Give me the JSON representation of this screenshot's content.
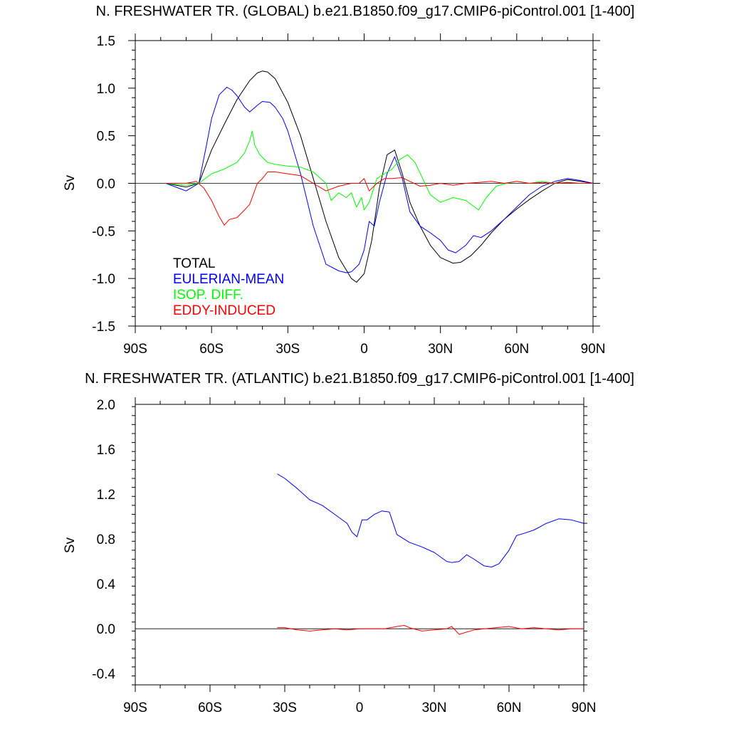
{
  "chart_data": [
    {
      "type": "line",
      "title": "N. FRESHWATER TR. (GLOBAL) b.e21.B1850.f09_g17.CMIP6-piControl.001 [1-400]",
      "xlabel": "",
      "ylabel": "Sv",
      "xlim": [
        -90,
        90
      ],
      "ylim": [
        -1.5,
        1.5
      ],
      "x_tick_values": [
        -90,
        -60,
        -30,
        0,
        30,
        60,
        90
      ],
      "x_tick_labels": [
        "90S",
        "60S",
        "30S",
        "0",
        "30N",
        "60N",
        "90N"
      ],
      "y_tick_values": [
        -1.5,
        -1.0,
        -0.5,
        0.0,
        0.5,
        1.0,
        1.5
      ],
      "y_tick_labels": [
        "-1.5",
        "-1.0",
        "-0.5",
        "0.0",
        "0.5",
        "1.0",
        "1.5"
      ],
      "legend_position": "lower-left",
      "zero_line": true,
      "series": [
        {
          "name": "TOTAL",
          "color": "#000000",
          "x": [
            -78,
            -70,
            -65,
            -60,
            -55,
            -50,
            -45,
            -42,
            -40,
            -38,
            -35,
            -30,
            -25,
            -20,
            -15,
            -10,
            -5,
            -3,
            0,
            3,
            6,
            9,
            12,
            15,
            18,
            22,
            26,
            30,
            35,
            38,
            42,
            46,
            50,
            55,
            60,
            65,
            70,
            75,
            80,
            85,
            90
          ],
          "y": [
            0.0,
            -0.04,
            0.0,
            0.35,
            0.62,
            0.88,
            1.08,
            1.16,
            1.18,
            1.17,
            1.1,
            0.85,
            0.5,
            0.05,
            -0.4,
            -0.78,
            -1.0,
            -1.04,
            -0.95,
            -0.6,
            -0.05,
            0.3,
            0.35,
            0.1,
            -0.2,
            -0.45,
            -0.65,
            -0.78,
            -0.84,
            -0.83,
            -0.76,
            -0.65,
            -0.52,
            -0.38,
            -0.27,
            -0.17,
            -0.08,
            0.0,
            0.04,
            0.02,
            0.0
          ]
        },
        {
          "name": "EULERIAN-MEAN",
          "color": "#0000ff",
          "x": [
            -78,
            -70,
            -65,
            -62,
            -60,
            -57,
            -54,
            -52,
            -50,
            -47,
            -45,
            -42,
            -40,
            -37,
            -35,
            -32,
            -30,
            -25,
            -20,
            -15,
            -10,
            -7,
            -5,
            -2,
            0,
            2,
            4,
            6,
            9,
            12,
            15,
            18,
            22,
            26,
            30,
            33,
            36,
            40,
            43,
            46,
            50,
            55,
            60,
            65,
            70,
            75,
            80,
            85,
            90
          ],
          "y": [
            0.0,
            -0.08,
            0.0,
            0.4,
            0.68,
            0.93,
            1.01,
            0.98,
            0.92,
            0.8,
            0.75,
            0.82,
            0.86,
            0.85,
            0.8,
            0.68,
            0.55,
            0.1,
            -0.45,
            -0.85,
            -0.92,
            -0.94,
            -0.93,
            -0.85,
            -0.7,
            -0.4,
            -0.45,
            -0.2,
            0.1,
            0.28,
            0.05,
            -0.3,
            -0.45,
            -0.52,
            -0.6,
            -0.7,
            -0.73,
            -0.65,
            -0.55,
            -0.57,
            -0.5,
            -0.38,
            -0.25,
            -0.12,
            -0.03,
            0.02,
            0.05,
            0.03,
            0.0
          ]
        },
        {
          "name": "ISOP. DIFF.",
          "color": "#00ff00",
          "x": [
            -78,
            -70,
            -65,
            -60,
            -55,
            -50,
            -47,
            -45,
            -44,
            -43,
            -41,
            -38,
            -35,
            -30,
            -25,
            -20,
            -15,
            -13,
            -10,
            -7,
            -5,
            -3,
            -1,
            0,
            2,
            5,
            8,
            11,
            14,
            17,
            20,
            23,
            26,
            30,
            35,
            40,
            45,
            48,
            52,
            56,
            60,
            65,
            70,
            75,
            80,
            85,
            90
          ],
          "y": [
            0.0,
            -0.02,
            0.0,
            0.1,
            0.15,
            0.22,
            0.32,
            0.45,
            0.55,
            0.4,
            0.3,
            0.22,
            0.2,
            0.18,
            0.17,
            0.12,
            0.0,
            -0.18,
            -0.1,
            -0.15,
            -0.1,
            -0.25,
            -0.15,
            -0.28,
            -0.2,
            0.05,
            0.1,
            0.15,
            0.25,
            0.3,
            0.22,
            0.05,
            -0.12,
            -0.2,
            -0.15,
            -0.18,
            -0.28,
            -0.15,
            -0.03,
            0.0,
            0.02,
            0.0,
            0.02,
            0.0,
            0.01,
            0.0,
            0.0
          ]
        },
        {
          "name": "EDDY-INDUCED",
          "color": "#ff0000",
          "x": [
            -78,
            -70,
            -66,
            -63,
            -60,
            -57,
            -55,
            -53,
            -50,
            -47,
            -45,
            -42,
            -40,
            -38,
            -35,
            -30,
            -25,
            -20,
            -15,
            -10,
            -5,
            -2,
            0,
            2,
            5,
            8,
            11,
            15,
            18,
            22,
            26,
            30,
            35,
            40,
            45,
            50,
            55,
            60,
            65,
            70,
            75,
            80,
            85,
            90
          ],
          "y": [
            0.0,
            0.0,
            0.02,
            -0.05,
            -0.18,
            -0.35,
            -0.44,
            -0.38,
            -0.36,
            -0.28,
            -0.22,
            0.0,
            0.05,
            0.12,
            0.12,
            0.1,
            0.08,
            0.0,
            -0.08,
            -0.03,
            0.0,
            0.0,
            0.05,
            -0.08,
            0.0,
            0.05,
            0.05,
            0.06,
            0.02,
            -0.03,
            -0.02,
            0.0,
            -0.02,
            0.0,
            0.01,
            0.02,
            0.0,
            0.02,
            0.0,
            0.01,
            0.0,
            0.01,
            0.0,
            0.0
          ]
        }
      ]
    },
    {
      "type": "line",
      "title": "N. FRESHWATER TR. (ATLANTIC) b.e21.B1850.f09_g17.CMIP6-piControl.001 [1-400]",
      "xlabel": "",
      "ylabel": "Sv",
      "xlim": [
        -90,
        90
      ],
      "ylim": [
        -0.5,
        2.0
      ],
      "x_tick_values": [
        -90,
        -60,
        -30,
        0,
        30,
        60,
        90
      ],
      "x_tick_labels": [
        "90S",
        "60S",
        "30S",
        "0",
        "30N",
        "60N",
        "90N"
      ],
      "y_tick_values": [
        -0.4,
        0.0,
        0.4,
        0.8,
        1.2,
        1.6,
        2.0
      ],
      "y_tick_labels": [
        "-0.4",
        "0.0",
        "0.4",
        "0.8",
        "1.2",
        "1.6",
        "2.0"
      ],
      "zero_line": true,
      "series": [
        {
          "color": "#0000ff",
          "x": [
            -33,
            -30,
            -25,
            -20,
            -15,
            -10,
            -5,
            -3,
            -1,
            1,
            3,
            6,
            9,
            12,
            15,
            20,
            25,
            30,
            35,
            37,
            40,
            43,
            46,
            50,
            53,
            56,
            60,
            63,
            66,
            70,
            75,
            80,
            85,
            90
          ],
          "y": [
            1.38,
            1.34,
            1.25,
            1.15,
            1.1,
            1.02,
            0.94,
            0.86,
            0.82,
            0.97,
            0.97,
            1.02,
            1.05,
            1.04,
            0.84,
            0.77,
            0.73,
            0.68,
            0.6,
            0.59,
            0.6,
            0.66,
            0.62,
            0.56,
            0.55,
            0.58,
            0.7,
            0.83,
            0.85,
            0.88,
            0.94,
            0.98,
            0.97,
            0.94
          ]
        },
        {
          "color": "#ff0000",
          "x": [
            -33,
            -30,
            -25,
            -20,
            -15,
            -10,
            -5,
            0,
            5,
            10,
            15,
            18,
            20,
            25,
            30,
            35,
            37,
            40,
            43,
            46,
            50,
            55,
            60,
            65,
            70,
            75,
            80,
            85,
            90
          ],
          "y": [
            0.01,
            0.01,
            -0.01,
            -0.02,
            -0.01,
            0.0,
            -0.01,
            0.0,
            0.0,
            0.0,
            0.02,
            0.03,
            0.01,
            -0.02,
            -0.01,
            0.0,
            0.02,
            -0.05,
            -0.03,
            -0.01,
            0.0,
            0.01,
            0.02,
            0.0,
            0.01,
            0.0,
            -0.01,
            0.0,
            0.0
          ]
        }
      ]
    }
  ]
}
